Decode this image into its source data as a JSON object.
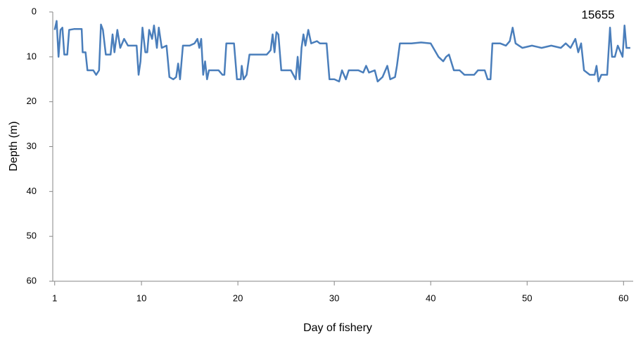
{
  "chart_data": {
    "type": "line",
    "annotation": "15655",
    "x_label": "Day of fishery",
    "y_label": "Depth (m)",
    "xlim": [
      0.8,
      61
    ],
    "xticks": [
      1,
      10,
      20,
      30,
      40,
      50,
      60
    ],
    "ylim": [
      0,
      60
    ],
    "yticks": [
      0,
      10,
      20,
      30,
      40,
      50,
      60
    ],
    "y_inverted": true,
    "grid": false,
    "series": [
      {
        "name": "15655",
        "color": "#4a7ebb",
        "x": [
          1.0,
          1.2,
          1.4,
          1.6,
          1.8,
          2.0,
          2.3,
          2.5,
          3.0,
          3.8,
          3.9,
          4.2,
          4.4,
          5.0,
          5.3,
          5.6,
          5.8,
          6.0,
          6.3,
          6.8,
          7.0,
          7.2,
          7.5,
          7.8,
          8.2,
          8.6,
          9.0,
          9.5,
          9.7,
          9.9,
          10.1,
          10.4,
          10.6,
          10.8,
          11.1,
          11.3,
          11.6,
          11.8,
          12.1,
          12.6,
          12.9,
          13.3,
          13.6,
          13.8,
          14.0,
          14.3,
          15.0,
          15.5,
          15.8,
          16.0,
          16.2,
          16.4,
          16.6,
          16.8,
          17.0,
          18.0,
          18.4,
          18.6,
          18.8,
          19.6,
          19.9,
          20.3,
          20.4,
          20.6,
          20.9,
          21.2,
          22.0,
          23.0,
          23.4,
          23.6,
          23.8,
          24.0,
          24.2,
          24.5,
          25.5,
          26.0,
          26.2,
          26.4,
          26.6,
          26.8,
          27.0,
          27.3,
          27.6,
          28.2,
          28.5,
          29.2,
          29.5,
          30.0,
          30.5,
          30.8,
          31.2,
          31.5,
          32.5,
          33.0,
          33.3,
          33.6,
          34.2,
          34.5,
          35.0,
          35.5,
          35.8,
          36.3,
          36.5,
          36.8,
          38.0,
          39.0,
          40.0,
          40.8,
          41.3,
          41.6,
          41.9,
          42.4,
          43.0,
          43.5,
          44.5,
          44.9,
          45.6,
          45.9,
          46.2,
          46.4,
          47.2,
          47.8,
          48.2,
          48.5,
          48.8,
          49.5,
          50.5,
          51.5,
          52.5,
          53.5,
          54.0,
          54.5,
          55.0,
          55.3,
          55.6,
          55.9,
          56.5,
          57.0,
          57.2,
          57.4,
          57.7,
          58.0,
          58.3,
          58.6,
          58.8,
          59.1,
          59.4,
          59.7,
          59.9,
          60.1,
          60.3,
          60.7
        ],
        "values": [
          4,
          2,
          10,
          4,
          3.5,
          9.5,
          9.5,
          4,
          3.8,
          3.8,
          9,
          9,
          13,
          13,
          14,
          13,
          2.8,
          4,
          9.5,
          9.5,
          5,
          9,
          4,
          8,
          6,
          7.5,
          7.5,
          7.5,
          14,
          11,
          3.5,
          9,
          9,
          4,
          6,
          3,
          8,
          3.5,
          8,
          7.5,
          14.5,
          15,
          14.5,
          11.5,
          15,
          7.5,
          7.5,
          7,
          6,
          8,
          6,
          14,
          11,
          15,
          13,
          13,
          14,
          14,
          7,
          7,
          15,
          15,
          12,
          15,
          14,
          9.5,
          9.5,
          9.5,
          8.5,
          5,
          9,
          4.5,
          5,
          13,
          13,
          15,
          10,
          15,
          8,
          5,
          7.5,
          4,
          7,
          6.5,
          7,
          7,
          15,
          15,
          15.5,
          13,
          15,
          13,
          13,
          13.5,
          12,
          13.5,
          13,
          15.5,
          14.5,
          12,
          15,
          14.5,
          12,
          7,
          7,
          6.8,
          7,
          10,
          11,
          10,
          9.5,
          13,
          13,
          14,
          14,
          13,
          13,
          15,
          15,
          7,
          7,
          7.5,
          6.5,
          3.5,
          7,
          8,
          7.5,
          8,
          7.5,
          8,
          7,
          8,
          6,
          9,
          7,
          13,
          14,
          14,
          12,
          15.5,
          14,
          14,
          14,
          3.5,
          10,
          10,
          7.5,
          9,
          10,
          3,
          8,
          8
        ]
      }
    ]
  }
}
